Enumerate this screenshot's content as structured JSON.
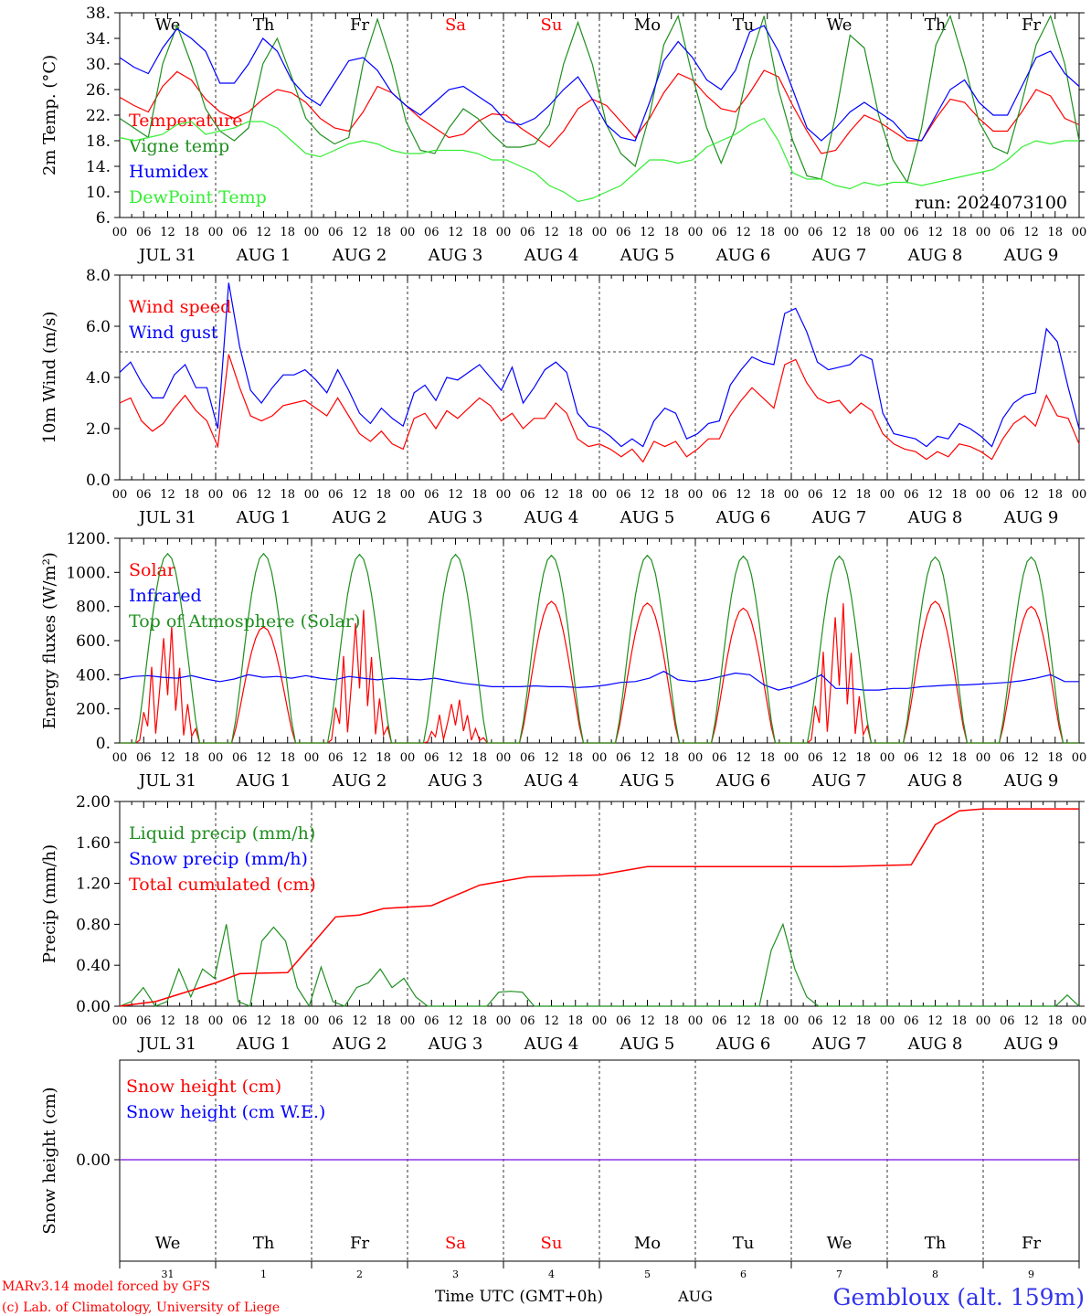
{
  "colors": {
    "red": "#ff0000",
    "green": "#1f8f1f",
    "blue": "#0000ff",
    "lightgreen": "#33ee33",
    "purple": "#8a2be2",
    "axis": "#000000",
    "location": "#3333ee",
    "credits": "#ff0000"
  },
  "days": [
    {
      "abbr": "We",
      "weekend": false,
      "month": "JUL",
      "num": "31"
    },
    {
      "abbr": "Th",
      "weekend": false,
      "month": "AUG",
      "num": "1"
    },
    {
      "abbr": "Fr",
      "weekend": false,
      "month": "AUG",
      "num": "2"
    },
    {
      "abbr": "Sa",
      "weekend": true,
      "month": "AUG",
      "num": "3"
    },
    {
      "abbr": "Su",
      "weekend": true,
      "month": "AUG",
      "num": "4"
    },
    {
      "abbr": "Mo",
      "weekend": false,
      "month": "AUG",
      "num": "5"
    },
    {
      "abbr": "Tu",
      "weekend": false,
      "month": "AUG",
      "num": "6"
    },
    {
      "abbr": "We",
      "weekend": false,
      "month": "AUG",
      "num": "7"
    },
    {
      "abbr": "Th",
      "weekend": false,
      "month": "AUG",
      "num": "8"
    },
    {
      "abbr": "Fr",
      "weekend": false,
      "month": "AUG",
      "num": "9"
    }
  ],
  "hour_labels": [
    "00",
    "06",
    "12",
    "18"
  ],
  "footer": {
    "credit_line1": "MARv3.14 model forced by GFS",
    "credit_line2": "(c) Lab. of Climatology, University of Liege",
    "time_label": "Time UTC (GMT+0h)",
    "month_label": "AUG",
    "location": "Gembloux (alt. 159m)"
  },
  "chart_data": [
    {
      "type": "line",
      "ylabel": "2m Temp. (°C)",
      "ylim": [
        6,
        38
      ],
      "yticks": [
        "38.",
        "34.",
        "30.",
        "26.",
        "22.",
        "18.",
        "14.",
        "10.",
        "6."
      ],
      "run_label": "run: 2024073100",
      "x": "hours since JUL 31 00 UTC (10 days, 3-hourly)",
      "series": [
        {
          "name": "Temperature",
          "color_key": "red",
          "values": [
            24.8,
            23.5,
            22.5,
            26.5,
            28.8,
            27.5,
            24.5,
            22.5,
            21.5,
            22.5,
            24.5,
            26.0,
            25.5,
            24.0,
            21.5,
            20.0,
            19.5,
            22.5,
            26.5,
            25.5,
            23.5,
            21.5,
            20.0,
            18.5,
            19.0,
            21.0,
            22.2,
            22.0,
            20.0,
            18.5,
            17.0,
            19.5,
            23.0,
            24.5,
            23.5,
            21.0,
            18.5,
            21.5,
            25.5,
            28.5,
            27.5,
            25.0,
            23.0,
            22.5,
            25.5,
            29.0,
            28.0,
            23.5,
            19.5,
            16.0,
            16.5,
            19.5,
            22.0,
            21.0,
            19.5,
            18.0,
            18.0,
            21.5,
            24.5,
            24.0,
            21.5,
            19.5,
            19.5,
            22.5,
            26.0,
            25.0,
            21.5,
            20.5
          ]
        },
        {
          "name": "Vigne temp",
          "color_key": "green",
          "values": [
            21.5,
            20.0,
            18.5,
            30.0,
            36.0,
            30.0,
            23.0,
            19.5,
            18.0,
            20.0,
            30.0,
            34.0,
            28.0,
            21.5,
            19.0,
            17.5,
            18.5,
            30.0,
            37.0,
            30.0,
            21.0,
            16.5,
            16.0,
            20.0,
            23.0,
            21.5,
            19.0,
            17.0,
            17.0,
            17.5,
            20.5,
            30.0,
            36.5,
            30.0,
            20.5,
            16.0,
            14.0,
            22.0,
            33.0,
            37.5,
            28.0,
            20.0,
            14.5,
            20.0,
            30.5,
            37.5,
            26.0,
            18.0,
            12.5,
            12.0,
            22.0,
            34.5,
            32.5,
            22.0,
            15.0,
            11.5,
            20.0,
            33.0,
            37.5,
            30.0,
            21.0,
            17.0,
            16.0,
            24.0,
            33.0,
            37.5,
            30.0,
            18.0
          ]
        },
        {
          "name": "Humidex",
          "color_key": "blue",
          "values": [
            31.0,
            29.5,
            28.5,
            32.5,
            35.5,
            34.0,
            32.0,
            27.0,
            27.0,
            30.0,
            34.0,
            32.0,
            27.5,
            25.0,
            23.5,
            27.0,
            30.5,
            31.0,
            29.0,
            25.5,
            23.5,
            22.0,
            24.0,
            26.0,
            26.5,
            25.0,
            23.5,
            21.0,
            20.5,
            21.5,
            23.5,
            26.0,
            28.0,
            24.5,
            20.5,
            18.5,
            18.0,
            24.0,
            30.5,
            33.5,
            31.0,
            27.5,
            26.0,
            29.0,
            35.0,
            36.0,
            32.0,
            26.0,
            20.0,
            18.0,
            20.0,
            22.5,
            24.0,
            22.5,
            21.0,
            18.5,
            18.0,
            22.0,
            26.0,
            27.5,
            24.0,
            22.0,
            22.0,
            26.5,
            31.0,
            32.0,
            28.5,
            26.5
          ]
        },
        {
          "name": "DewPoint Temp",
          "color_key": "lightgreen",
          "values": [
            18.5,
            18.0,
            18.5,
            19.0,
            20.5,
            21.0,
            19.0,
            19.5,
            20.0,
            21.0,
            21.0,
            20.0,
            18.0,
            16.0,
            15.5,
            16.5,
            17.5,
            18.0,
            17.5,
            16.5,
            16.0,
            16.0,
            16.5,
            16.5,
            16.5,
            16.0,
            15.0,
            15.0,
            14.0,
            13.0,
            11.0,
            10.0,
            8.5,
            9.0,
            10.0,
            11.0,
            13.0,
            15.0,
            15.0,
            14.5,
            15.0,
            17.0,
            18.0,
            19.0,
            20.5,
            21.5,
            18.0,
            13.0,
            12.0,
            12.0,
            11.0,
            10.5,
            11.5,
            11.0,
            11.5,
            11.5,
            11.0,
            11.5,
            12.0,
            12.5,
            13.0,
            13.5,
            15.0,
            17.0,
            18.0,
            17.5,
            18.0,
            18.0
          ]
        }
      ]
    },
    {
      "type": "line",
      "ylabel": "10m Wind (m/s)",
      "ylim": [
        0,
        8
      ],
      "yticks": [
        "8.0",
        "6.0",
        "4.0",
        "2.0",
        "0.0"
      ],
      "reference_line": 5,
      "x": "hours since JUL 31 00 UTC (10 days, 3-hourly)",
      "series": [
        {
          "name": "Wind speed",
          "color_key": "red",
          "values": [
            3.0,
            3.2,
            2.3,
            1.9,
            2.2,
            2.8,
            3.3,
            2.7,
            2.3,
            1.3,
            4.9,
            3.6,
            2.5,
            2.3,
            2.5,
            2.9,
            3.0,
            3.1,
            2.8,
            2.5,
            3.2,
            2.5,
            1.8,
            1.5,
            1.9,
            1.4,
            1.2,
            2.4,
            2.6,
            2.0,
            2.7,
            2.4,
            2.8,
            3.2,
            2.9,
            2.3,
            2.6,
            2.0,
            2.4,
            2.4,
            3.0,
            2.6,
            1.6,
            1.3,
            1.4,
            1.2,
            0.9,
            1.2,
            0.7,
            1.5,
            1.3,
            1.5,
            0.9,
            1.2,
            1.6,
            1.6,
            2.5,
            3.1,
            3.6,
            3.2,
            2.8,
            4.5,
            4.7,
            3.8,
            3.2,
            3.0,
            3.1,
            2.6,
            3.0,
            2.7,
            1.8,
            1.4,
            1.2,
            1.1,
            0.8,
            1.1,
            0.9,
            1.4,
            1.3,
            1.1,
            0.8,
            1.6,
            2.2,
            2.5,
            2.1,
            3.3,
            2.5,
            2.4,
            1.4
          ]
        },
        {
          "name": "Wind gust",
          "color_key": "blue",
          "values": [
            4.2,
            4.6,
            3.8,
            3.2,
            3.2,
            4.1,
            4.5,
            3.6,
            3.6,
            2.0,
            7.7,
            5.2,
            3.5,
            3.0,
            3.6,
            4.1,
            4.1,
            4.3,
            3.9,
            3.4,
            4.3,
            3.5,
            2.6,
            2.2,
            2.8,
            2.4,
            2.1,
            3.4,
            3.7,
            3.1,
            4.0,
            3.9,
            4.2,
            4.5,
            4.0,
            3.5,
            4.4,
            3.0,
            3.6,
            4.3,
            4.6,
            4.2,
            2.6,
            2.1,
            2.0,
            1.7,
            1.3,
            1.6,
            1.3,
            2.3,
            2.8,
            2.6,
            1.6,
            1.8,
            2.2,
            2.3,
            3.7,
            4.3,
            4.8,
            4.6,
            4.5,
            6.5,
            6.7,
            5.8,
            4.6,
            4.3,
            4.4,
            4.5,
            4.9,
            4.7,
            2.6,
            1.8,
            1.7,
            1.6,
            1.3,
            1.7,
            1.6,
            2.2,
            2.0,
            1.7,
            1.3,
            2.4,
            3.0,
            3.3,
            3.4,
            5.9,
            5.4,
            3.6,
            2.0
          ]
        }
      ]
    },
    {
      "type": "line",
      "ylabel": "Energy fluxes (W/m²)",
      "ylim": [
        0,
        1200
      ],
      "yticks": [
        "1200.",
        "1000.",
        "800.",
        "600.",
        "400.",
        "200.",
        "0."
      ],
      "x": "hours since JUL 31 00 UTC (10 days, hourly)",
      "series": [
        {
          "name": "Solar",
          "color_key": "red",
          "days_peak": [
            700,
            680,
            800,
            260,
            830,
            820,
            790,
            840,
            830,
            800
          ],
          "days_cloudy": [
            true,
            false,
            true,
            true,
            false,
            false,
            false,
            true,
            false,
            false
          ]
        },
        {
          "name": "Infrared",
          "color_key": "blue",
          "values": [
            375,
            390,
            395,
            385,
            380,
            395,
            375,
            360,
            375,
            400,
            385,
            390,
            380,
            395,
            380,
            370,
            390,
            380,
            370,
            380,
            375,
            370,
            380,
            365,
            350,
            340,
            330,
            330,
            330,
            335,
            330,
            330,
            325,
            330,
            340,
            355,
            360,
            380,
            420,
            370,
            360,
            370,
            390,
            410,
            400,
            340,
            310,
            330,
            360,
            400,
            320,
            320,
            310,
            310,
            320,
            320,
            330,
            335,
            340,
            340,
            345,
            350,
            355,
            365,
            380,
            400,
            360,
            360
          ]
        },
        {
          "name": "Top of Atmosphere (Solar)",
          "color_key": "green",
          "days_peak": [
            1110,
            1110,
            1105,
            1105,
            1100,
            1100,
            1095,
            1095,
            1090,
            1090
          ]
        }
      ]
    },
    {
      "type": "line",
      "ylabel": "Precip (mm/h)",
      "ylim": [
        0,
        2.2
      ],
      "yticks": [
        "2.00",
        "1.60",
        "1.20",
        "0.80",
        "0.40",
        "0.00"
      ],
      "x": "hours since JUL 31 00 UTC (10 days, 3-hourly)",
      "series": [
        {
          "name": "Liquid precip (mm/h)",
          "color_key": "green",
          "values": [
            0.0,
            0.05,
            0.2,
            0.0,
            0.05,
            0.4,
            0.1,
            0.4,
            0.3,
            0.88,
            0.05,
            0.0,
            0.7,
            0.85,
            0.7,
            0.2,
            0.0,
            0.42,
            0.05,
            0.0,
            0.2,
            0.25,
            0.4,
            0.2,
            0.3,
            0.1,
            0.0,
            0.0,
            0.0,
            0.0,
            0.0,
            0.0,
            0.15,
            0.16,
            0.15,
            0.0,
            0.0,
            0.0,
            0.0,
            0.0,
            0.0,
            0.0,
            0.0,
            0.0,
            0.0,
            0.0,
            0.0,
            0.0,
            0.0,
            0.0,
            0.0,
            0.0,
            0.0,
            0.0,
            0.0,
            0.6,
            0.88,
            0.4,
            0.1,
            0.0,
            0.0,
            0.0,
            0.0,
            0.0,
            0.0,
            0.0,
            0.0,
            0.0,
            0.0,
            0.0,
            0.0,
            0.0,
            0.0,
            0.0,
            0.0,
            0.0,
            0.0,
            0.0,
            0.0,
            0.0,
            0.12,
            0.0
          ]
        },
        {
          "name": "Snow precip (mm/h)",
          "color_key": "blue",
          "values": []
        },
        {
          "name": "Total cumulated (cm)",
          "color_key": "red",
          "points": [
            [
              0,
              0.0
            ],
            [
              9,
              0.05
            ],
            [
              24,
              0.25
            ],
            [
              30,
              0.35
            ],
            [
              42,
              0.36
            ],
            [
              54,
              0.96
            ],
            [
              60,
              0.98
            ],
            [
              66,
              1.05
            ],
            [
              78,
              1.08
            ],
            [
              90,
              1.3
            ],
            [
              102,
              1.39
            ],
            [
              120,
              1.41
            ],
            [
              132,
              1.5
            ],
            [
              156,
              1.5
            ],
            [
              180,
              1.5
            ],
            [
              198,
              1.52
            ],
            [
              204,
              1.95
            ],
            [
              210,
              2.1
            ],
            [
              216,
              2.12
            ],
            [
              240,
              2.12
            ]
          ]
        }
      ]
    },
    {
      "type": "line",
      "ylabel": "Snow height (cm)",
      "yticks": [
        "0.00"
      ],
      "series": [
        {
          "name": "Snow height (cm)",
          "color_key": "red",
          "values": [
            0,
            0
          ]
        },
        {
          "name": "Snow height (cm W.E.)",
          "color_key": "blue",
          "values": [
            0,
            0
          ]
        }
      ]
    }
  ]
}
